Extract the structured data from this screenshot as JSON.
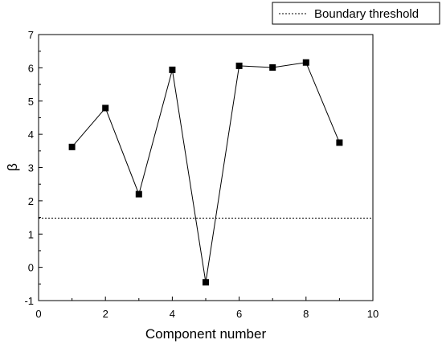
{
  "chart_data": {
    "type": "scatter",
    "xlabel": "Component number",
    "ylabel": "β",
    "xlim": [
      0,
      10
    ],
    "ylim": [
      -1,
      7
    ],
    "x_ticks": [
      "0",
      "2",
      "4",
      "6",
      "8",
      "10"
    ],
    "y_ticks": [
      "-1",
      "0",
      "1",
      "2",
      "3",
      "4",
      "5",
      "6",
      "7"
    ],
    "grid": false,
    "legend_position": "top-right",
    "series": [
      {
        "mode": "line+markers",
        "color": "#000000",
        "x": [
          1,
          2,
          3,
          4,
          5,
          6,
          7,
          8,
          9
        ],
        "y": [
          3.62,
          4.79,
          2.2,
          5.94,
          -0.45,
          6.06,
          6.01,
          6.16,
          3.75
        ]
      },
      {
        "name": "Boundary threshold",
        "mode": "dashed-line",
        "color": "#000000",
        "y_constant": 1.48
      }
    ]
  }
}
